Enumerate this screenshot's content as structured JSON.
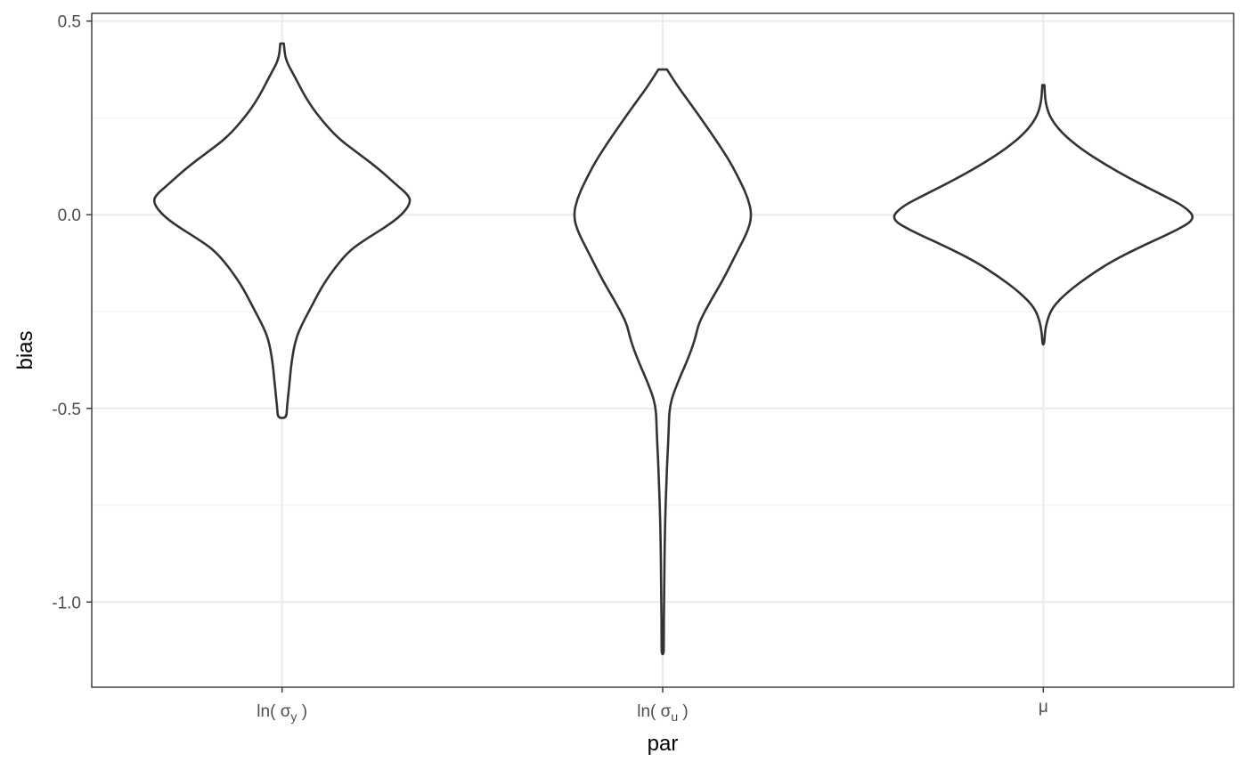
{
  "chart_data": {
    "type": "violin",
    "xlabel": "par",
    "ylabel": "bias",
    "ylim": [
      -1.22,
      0.52
    ],
    "yticks": [
      -1.0,
      -0.5,
      0.0,
      0.5
    ],
    "ytick_labels": [
      "-1.0",
      "-0.5",
      "0.0",
      "0.5"
    ],
    "grid": true,
    "colors": {
      "outline": "#333333",
      "fill": "#ffffff",
      "grid_major": "#ebebeb",
      "grid_minor": "#f2f2f2",
      "panel_border": "#333333"
    },
    "categories": [
      {
        "label": "ln( σy )",
        "base": "ln( σ",
        "sub": "y",
        "close": " )"
      },
      {
        "label": "ln( σu )",
        "base": "ln( σ",
        "sub": "u",
        "close": " )"
      },
      {
        "label": "μ",
        "base": "μ",
        "sub": "",
        "close": ""
      }
    ],
    "violins": [
      {
        "category": "ln( σy )",
        "profile": [
          [
            0.442,
            0.01
          ],
          [
            0.4,
            0.02
          ],
          [
            0.36,
            0.07
          ],
          [
            0.3,
            0.14
          ],
          [
            0.25,
            0.22
          ],
          [
            0.2,
            0.32
          ],
          [
            0.16,
            0.44
          ],
          [
            0.12,
            0.56
          ],
          [
            0.08,
            0.66
          ],
          [
            0.05,
            0.74
          ],
          [
            0.03,
            0.75
          ],
          [
            0.0,
            0.7
          ],
          [
            -0.03,
            0.61
          ],
          [
            -0.06,
            0.5
          ],
          [
            -0.09,
            0.4
          ],
          [
            -0.13,
            0.32
          ],
          [
            -0.18,
            0.24
          ],
          [
            -0.23,
            0.18
          ],
          [
            -0.28,
            0.12
          ],
          [
            -0.32,
            0.08
          ],
          [
            -0.38,
            0.055
          ],
          [
            -0.45,
            0.04
          ],
          [
            -0.5,
            0.028
          ],
          [
            -0.525,
            0.025
          ]
        ]
      },
      {
        "category": "ln( σu )",
        "profile": [
          [
            0.375,
            0.025
          ],
          [
            0.33,
            0.09
          ],
          [
            0.27,
            0.19
          ],
          [
            0.2,
            0.3
          ],
          [
            0.14,
            0.39
          ],
          [
            0.08,
            0.46
          ],
          [
            0.04,
            0.5
          ],
          [
            0.0,
            0.52
          ],
          [
            -0.04,
            0.5
          ],
          [
            -0.1,
            0.43
          ],
          [
            -0.17,
            0.35
          ],
          [
            -0.23,
            0.27
          ],
          [
            -0.28,
            0.21
          ],
          [
            -0.32,
            0.19
          ],
          [
            -0.37,
            0.15
          ],
          [
            -0.43,
            0.09
          ],
          [
            -0.49,
            0.04
          ],
          [
            -0.56,
            0.035
          ],
          [
            -0.65,
            0.025
          ],
          [
            -0.8,
            0.013
          ],
          [
            -1.0,
            0.008
          ],
          [
            -1.1,
            0.006
          ],
          [
            -1.135,
            0.006
          ]
        ]
      },
      {
        "category": "μ",
        "profile": [
          [
            0.335,
            0.006
          ],
          [
            0.29,
            0.012
          ],
          [
            0.25,
            0.04
          ],
          [
            0.21,
            0.11
          ],
          [
            0.17,
            0.22
          ],
          [
            0.13,
            0.36
          ],
          [
            0.09,
            0.52
          ],
          [
            0.05,
            0.7
          ],
          [
            0.02,
            0.83
          ],
          [
            -0.01,
            0.89
          ],
          [
            -0.04,
            0.78
          ],
          [
            -0.08,
            0.58
          ],
          [
            -0.12,
            0.4
          ],
          [
            -0.16,
            0.26
          ],
          [
            -0.2,
            0.14
          ],
          [
            -0.24,
            0.05
          ],
          [
            -0.28,
            0.018
          ],
          [
            -0.31,
            0.008
          ],
          [
            -0.335,
            0.005
          ]
        ]
      }
    ]
  }
}
